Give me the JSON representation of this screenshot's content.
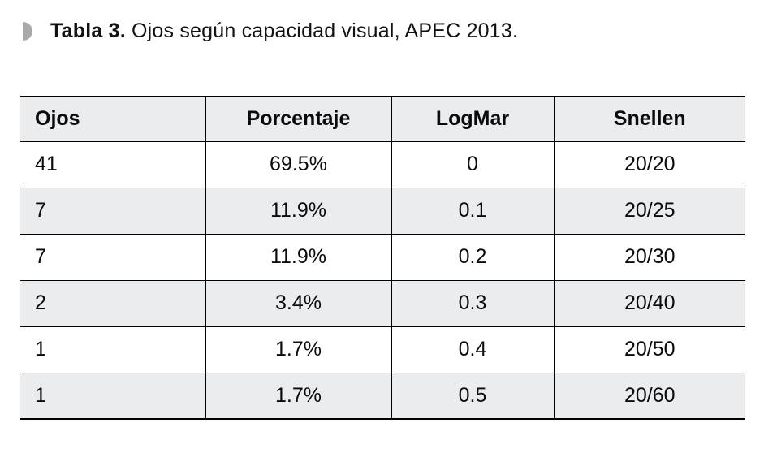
{
  "caption": {
    "label": "Tabla 3.",
    "text": " Ojos según capacidad visual, APEC 2013.",
    "bullet_color": "#a9a9ab"
  },
  "table": {
    "header_bg": "#ebecee",
    "stripe_bg": "#ebecee",
    "border_color": "#000000",
    "columns": [
      "Ojos",
      "Porcentaje",
      "LogMar",
      "Snellen"
    ],
    "rows": [
      [
        "41",
        "69.5%",
        "0",
        "20/20"
      ],
      [
        "7",
        "11.9%",
        "0.1",
        "20/25"
      ],
      [
        "7",
        "11.9%",
        "0.2",
        "20/30"
      ],
      [
        "2",
        "3.4%",
        "0.3",
        "20/40"
      ],
      [
        "1",
        "1.7%",
        "0.4",
        "20/50"
      ],
      [
        "1",
        "1.7%",
        "0.5",
        "20/60"
      ]
    ]
  }
}
